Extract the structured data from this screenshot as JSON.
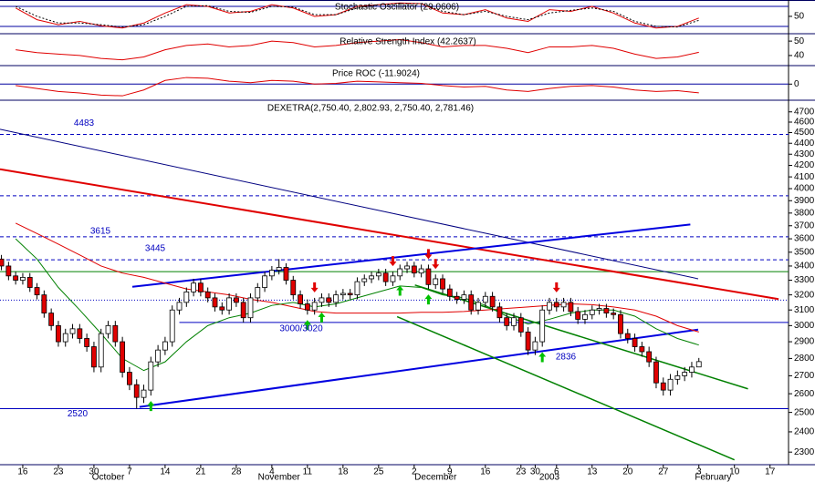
{
  "chart_data": [
    {
      "type": "line",
      "title": "Stochastic Oscillator (29.0606)",
      "xlim": [
        -0.2,
        110.6
      ],
      "ylim": [
        -2,
        99
      ],
      "yticks": [
        50
      ],
      "levels": [
        20,
        80
      ],
      "x": [
        2,
        5,
        8,
        11,
        14,
        17,
        20,
        23,
        26,
        29,
        32,
        35,
        38,
        41,
        44,
        47,
        50,
        53,
        56,
        59,
        62,
        65,
        68,
        71,
        74,
        77,
        80,
        83,
        86,
        89,
        92,
        95,
        98
      ],
      "series": [
        {
          "color": "#e00000",
          "dash": false,
          "values": [
            75,
            40,
            25,
            35,
            22,
            15,
            30,
            60,
            85,
            80,
            60,
            65,
            85,
            75,
            50,
            55,
            80,
            85,
            90,
            88,
            60,
            55,
            70,
            45,
            35,
            70,
            65,
            80,
            60,
            30,
            15,
            20,
            45
          ]
        },
        {
          "color": "#000000",
          "dash": true,
          "values": [
            80,
            50,
            30,
            30,
            25,
            18,
            25,
            50,
            80,
            82,
            65,
            62,
            80,
            78,
            55,
            55,
            75,
            85,
            88,
            88,
            65,
            55,
            65,
            50,
            40,
            60,
            68,
            75,
            65,
            35,
            20,
            18,
            38
          ]
        }
      ]
    },
    {
      "type": "line",
      "title": "Relative Strength Index (42.2637)",
      "xlim": [
        -0.2,
        110.6
      ],
      "ylim": [
        33,
        54.5
      ],
      "yticks": [
        50,
        40
      ],
      "levels": [],
      "x": [
        2,
        5,
        8,
        11,
        14,
        17,
        20,
        23,
        26,
        29,
        32,
        35,
        38,
        41,
        44,
        47,
        50,
        53,
        56,
        59,
        62,
        65,
        68,
        71,
        74,
        77,
        80,
        83,
        86,
        89,
        92,
        95,
        98
      ],
      "series": [
        {
          "color": "#e00000",
          "dash": false,
          "values": [
            44,
            42,
            41,
            40,
            38,
            37,
            39,
            44,
            47,
            48,
            46,
            47,
            50,
            49,
            46,
            47,
            49,
            50,
            51,
            49,
            46,
            47,
            47,
            45,
            42,
            46,
            46,
            47,
            45,
            41,
            38,
            39,
            42.2637
          ]
        }
      ]
    },
    {
      "type": "line",
      "title": "Price ROC (-11.9024)",
      "xlim": [
        -0.2,
        110.6
      ],
      "ylim": [
        -22,
        24
      ],
      "yticks": [
        0
      ],
      "levels": [
        0
      ],
      "x": [
        2,
        5,
        8,
        11,
        14,
        17,
        20,
        23,
        26,
        29,
        32,
        35,
        38,
        41,
        44,
        47,
        50,
        53,
        56,
        59,
        62,
        65,
        68,
        71,
        74,
        77,
        80,
        83,
        86,
        89,
        92,
        95,
        98
      ],
      "series": [
        {
          "color": "#e00000",
          "dash": false,
          "values": [
            -2,
            -6,
            -10,
            -12,
            -15,
            -16,
            -8,
            5,
            9,
            8,
            4,
            2,
            5,
            4,
            0,
            1,
            4,
            3,
            2,
            1,
            -2,
            -4,
            -3,
            -8,
            -10,
            -6,
            -3,
            -2,
            -4,
            -8,
            -10,
            -9,
            -11.9024
          ]
        }
      ]
    },
    {
      "type": "candlestick",
      "title": "DEXETRA(2,750.40, 2,802.93, 2,750.40, 2,781.46)",
      "log_scale": true,
      "xlim": [
        -0.2,
        110.6
      ],
      "ylim": [
        2240,
        4807
      ],
      "up_color": "#ffffff",
      "down_color": "#e00000",
      "yticks": [
        4700,
        4600,
        4500,
        4400,
        4300,
        4200,
        4100,
        4000,
        3900,
        3800,
        3700,
        3600,
        3500,
        3400,
        3300,
        3200,
        3100,
        3000,
        2900,
        2800,
        2700,
        2600,
        2500,
        2400,
        2300
      ],
      "xticks": [
        {
          "value": 3,
          "label": "16"
        },
        {
          "value": 8,
          "label": "23"
        },
        {
          "value": 13,
          "label": "30"
        },
        {
          "value": 18,
          "label": "7"
        },
        {
          "value": 23,
          "label": "14"
        },
        {
          "value": 28,
          "label": "21"
        },
        {
          "value": 33,
          "label": "28"
        },
        {
          "value": 38,
          "label": "4"
        },
        {
          "value": 43,
          "label": "11"
        },
        {
          "value": 48,
          "label": "18"
        },
        {
          "value": 53,
          "label": "25"
        },
        {
          "value": 58,
          "label": "2"
        },
        {
          "value": 63,
          "label": "9"
        },
        {
          "value": 68,
          "label": "16"
        },
        {
          "value": 73,
          "label": "23"
        },
        {
          "value": 75,
          "label": "30"
        },
        {
          "value": 78,
          "label": "6"
        },
        {
          "value": 83,
          "label": "13"
        },
        {
          "value": 88,
          "label": "20"
        },
        {
          "value": 93,
          "label": "27"
        },
        {
          "value": 98,
          "label": "3"
        },
        {
          "value": 103,
          "label": "10"
        },
        {
          "value": 108,
          "label": "17"
        }
      ],
      "month_labels": [
        {
          "value": 15,
          "label": "October"
        },
        {
          "value": 39,
          "label": "November"
        },
        {
          "value": 61,
          "label": "December"
        },
        {
          "value": 77,
          "label": "2003"
        },
        {
          "value": 100,
          "label": "February"
        }
      ],
      "categories": [
        null,
        null,
        null,
        null,
        null,
        null,
        null,
        null,
        null,
        null,
        null,
        null,
        null,
        null,
        null,
        null,
        null,
        null,
        null,
        null,
        null,
        null,
        null,
        null,
        null,
        null,
        null,
        null,
        null,
        null,
        null,
        null,
        null,
        null,
        null,
        null,
        null,
        null,
        null,
        null,
        null,
        null,
        null,
        null,
        null,
        null,
        null,
        null,
        null,
        null,
        null,
        null,
        null,
        null,
        null,
        null,
        null,
        null,
        null,
        null,
        null,
        null,
        null,
        null,
        null,
        null,
        null,
        null,
        null,
        null,
        null,
        null,
        null,
        null,
        null,
        null,
        null,
        null,
        null,
        null,
        null,
        null,
        null,
        null,
        null,
        null,
        null,
        null,
        null,
        null,
        null,
        null,
        null,
        null,
        null,
        null,
        null,
        null,
        null
      ],
      "open": [
        3450,
        3400,
        3330,
        3300,
        3320,
        3250,
        3200,
        3080,
        3000,
        2900,
        2950,
        2980,
        2920,
        2870,
        2750,
        2950,
        3000,
        2900,
        2720,
        2650,
        2580,
        2620,
        2780,
        2850,
        2900,
        3100,
        3150,
        3220,
        3280,
        3220,
        3180,
        3120,
        3100,
        3180,
        3150,
        3050,
        3180,
        3250,
        3330,
        3370,
        3390,
        3300,
        3200,
        3140,
        3100,
        3150,
        3180,
        3150,
        3200,
        3210,
        3200,
        3290,
        3310,
        3330,
        3350,
        3290,
        3330,
        3380,
        3400,
        3350,
        3380,
        3270,
        3310,
        3240,
        3190,
        3170,
        3200,
        3100,
        3150,
        3190,
        3120,
        3050,
        3000,
        3050,
        2960,
        2850,
        2900,
        3100,
        3150,
        3120,
        3150,
        3090,
        3040,
        3070,
        3100,
        3110,
        3080,
        3070,
        2950,
        2920,
        2870,
        2840,
        2780,
        2660,
        2620,
        2680,
        2700,
        2720,
        2750.4
      ],
      "high": [
        3480,
        3430,
        3360,
        3350,
        3350,
        3280,
        3230,
        3110,
        3030,
        2980,
        3010,
        3010,
        2950,
        2900,
        2980,
        3030,
        3030,
        2930,
        2750,
        2680,
        2650,
        2810,
        2880,
        2930,
        3130,
        3180,
        3250,
        3310,
        3310,
        3250,
        3210,
        3150,
        3210,
        3210,
        3180,
        3210,
        3280,
        3360,
        3400,
        3450,
        3420,
        3330,
        3230,
        3170,
        3180,
        3210,
        3210,
        3230,
        3240,
        3240,
        3320,
        3340,
        3360,
        3380,
        3380,
        3360,
        3410,
        3430,
        3430,
        3410,
        3410,
        3340,
        3340,
        3270,
        3220,
        3230,
        3230,
        3180,
        3220,
        3220,
        3150,
        3080,
        3080,
        3080,
        2990,
        2930,
        3130,
        3180,
        3180,
        3180,
        3180,
        3120,
        3100,
        3130,
        3140,
        3140,
        3110,
        3100,
        2980,
        2950,
        2900,
        2870,
        2810,
        2690,
        2710,
        2730,
        2750,
        2780,
        2802.93
      ],
      "low": [
        3370,
        3300,
        3270,
        3270,
        3220,
        3170,
        3050,
        2970,
        2870,
        2870,
        2920,
        2890,
        2840,
        2720,
        2720,
        2920,
        2870,
        2690,
        2620,
        2520,
        2550,
        2590,
        2750,
        2820,
        2870,
        3070,
        3120,
        3190,
        3190,
        3150,
        3090,
        3070,
        3070,
        3120,
        3020,
        3020,
        3150,
        3220,
        3300,
        3340,
        3270,
        3170,
        3110,
        3070,
        3070,
        3120,
        3120,
        3120,
        3170,
        3170,
        3170,
        3260,
        3280,
        3300,
        3260,
        3260,
        3300,
        3350,
        3320,
        3320,
        3240,
        3240,
        3210,
        3160,
        3140,
        3140,
        3070,
        3070,
        3120,
        3090,
        3020,
        2970,
        2970,
        2930,
        2820,
        2820,
        2870,
        3070,
        3090,
        3090,
        3060,
        3010,
        3010,
        3040,
        3070,
        3050,
        3040,
        2920,
        2890,
        2840,
        2810,
        2750,
        2630,
        2590,
        2590,
        2650,
        2670,
        2690,
        2750.4
      ],
      "close": [
        3400,
        3330,
        3300,
        3320,
        3250,
        3200,
        3080,
        3000,
        2900,
        2950,
        2980,
        2920,
        2870,
        2750,
        2950,
        3000,
        2900,
        2720,
        2650,
        2580,
        2620,
        2780,
        2850,
        2900,
        3100,
        3150,
        3220,
        3280,
        3220,
        3180,
        3120,
        3100,
        3180,
        3150,
        3050,
        3180,
        3250,
        3330,
        3370,
        3390,
        3300,
        3200,
        3140,
        3100,
        3150,
        3180,
        3150,
        3200,
        3210,
        3200,
        3290,
        3310,
        3330,
        3350,
        3290,
        3330,
        3380,
        3400,
        3350,
        3380,
        3270,
        3310,
        3240,
        3190,
        3170,
        3200,
        3100,
        3150,
        3190,
        3120,
        3050,
        3000,
        3050,
        2960,
        2850,
        2900,
        3100,
        3150,
        3120,
        3150,
        3090,
        3040,
        3070,
        3100,
        3110,
        3080,
        3070,
        2950,
        2920,
        2870,
        2840,
        2780,
        2660,
        2620,
        2680,
        2700,
        2720,
        2750,
        2781.46
      ],
      "ma_x": [
        2,
        5,
        8,
        11,
        14,
        17,
        20,
        23,
        26,
        29,
        32,
        35,
        38,
        41,
        44,
        47,
        50,
        53,
        56,
        59,
        62,
        65,
        68,
        71,
        74,
        77,
        80,
        83,
        86,
        89,
        92,
        95,
        98
      ],
      "moving_averages": [
        {
          "color": "#e00000",
          "values": [
            3720,
            3640,
            3560,
            3480,
            3400,
            3350,
            3320,
            3280,
            3240,
            3220,
            3200,
            3170,
            3150,
            3120,
            3090,
            3080,
            3080,
            3080,
            3080,
            3085,
            3085,
            3090,
            3100,
            3110,
            3120,
            3130,
            3140,
            3135,
            3120,
            3100,
            3060,
            3000,
            2960
          ]
        },
        {
          "color": "#008000",
          "values": [
            3600,
            3450,
            3250,
            3100,
            2950,
            2800,
            2730,
            2780,
            2900,
            3000,
            3050,
            3080,
            3130,
            3150,
            3120,
            3140,
            3180,
            3220,
            3260,
            3250,
            3200,
            3180,
            3130,
            3060,
            3010,
            3040,
            3080,
            3100,
            3100,
            3060,
            2980,
            2920,
            2880
          ]
        }
      ],
      "trendlines": [
        {
          "color": "#000080",
          "width": 1,
          "x": [
            -0.2,
            97.9
          ],
          "values": [
            4531,
            3310
          ]
        },
        {
          "color": "#e00000",
          "width": 2,
          "x": [
            -0.2,
            109.2
          ],
          "values": [
            4166,
            3172
          ]
        },
        {
          "color": "#0000e0",
          "width": 2,
          "x": [
            18.4,
            96.8
          ],
          "values": [
            3255,
            3710
          ]
        },
        {
          "color": "#0000e0",
          "width": 2,
          "x": [
            19.4,
            97.9
          ],
          "values": [
            2529,
            2975
          ]
        },
        {
          "color": "#008000",
          "width": 1.5,
          "x": [
            58.1,
            104.9
          ],
          "values": [
            3267,
            2627
          ]
        },
        {
          "color": "#008000",
          "width": 1.5,
          "x": [
            55.6,
            103.0
          ],
          "values": [
            3057,
            2263
          ]
        }
      ],
      "levels": [
        {
          "value": 4483,
          "style": "dashed",
          "color": "#0000c0",
          "labeled": true
        },
        {
          "value": 3940,
          "style": "dashed",
          "color": "#0000c0",
          "labeled": false
        },
        {
          "value": 3615,
          "style": "dashed",
          "color": "#0000c0",
          "labeled": true
        },
        {
          "value": 3445,
          "style": "dashed",
          "color": "#0000c0",
          "labeled": true
        },
        {
          "value": 3360,
          "style": "solid",
          "color": "#008000",
          "labeled": false
        },
        {
          "value": 3165,
          "style": "dotted",
          "color": "#0000c0",
          "labeled": false
        },
        {
          "value": 3020,
          "style": "solid",
          "color": "#0000c0",
          "labeled": false,
          "x_from": 25,
          "label": "3000/3020"
        },
        {
          "value": 2520,
          "style": "solid",
          "color": "#0000c0",
          "labeled": true
        }
      ],
      "point_labels": [
        2836
      ],
      "buy_signals": [
        21,
        43,
        45,
        56,
        60,
        76
      ],
      "sell_signals": [
        44,
        55,
        60,
        61,
        78
      ],
      "buy_color": "#00c000",
      "sell_color": "#e00000"
    }
  ]
}
